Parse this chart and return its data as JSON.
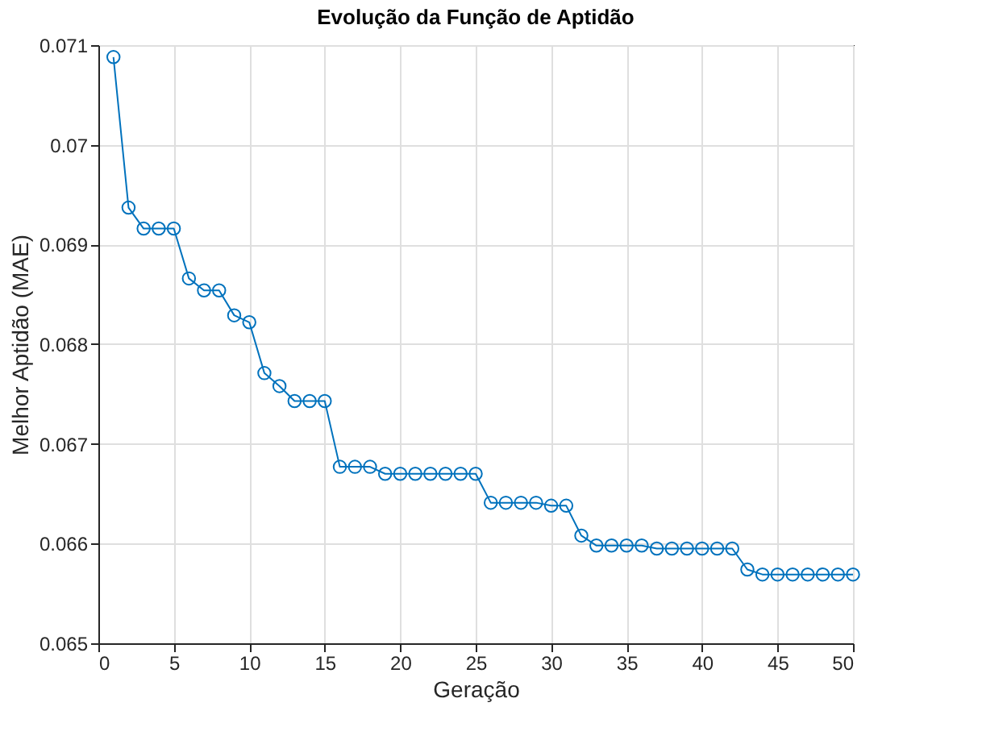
{
  "chart_data": {
    "type": "line",
    "title": "Evolução da Função de Aptidão",
    "xlabel": "Geração",
    "ylabel": "Melhor Aptidão (MAE)",
    "x": [
      1,
      2,
      3,
      4,
      5,
      6,
      7,
      8,
      9,
      10,
      11,
      12,
      13,
      14,
      15,
      16,
      17,
      18,
      19,
      20,
      21,
      22,
      23,
      24,
      25,
      26,
      27,
      28,
      29,
      30,
      31,
      32,
      33,
      34,
      35,
      36,
      37,
      38,
      39,
      40,
      41,
      42,
      43,
      44,
      45,
      46,
      47,
      48,
      49,
      50
    ],
    "series": [
      {
        "color": "#0072bd",
        "values": [
          0.07088,
          0.06937,
          0.06916,
          0.06916,
          0.06916,
          0.06866,
          0.06854,
          0.06854,
          0.06829,
          0.06822,
          0.06771,
          0.06758,
          0.06743,
          0.06743,
          0.06743,
          0.06677,
          0.06677,
          0.06677,
          0.0667,
          0.0667,
          0.0667,
          0.0667,
          0.0667,
          0.0667,
          0.0667,
          0.06641,
          0.06641,
          0.06641,
          0.06641,
          0.06638,
          0.06638,
          0.06608,
          0.06598,
          0.06598,
          0.06598,
          0.06598,
          0.06595,
          0.06595,
          0.06595,
          0.06595,
          0.06595,
          0.06595,
          0.06574,
          0.06569,
          0.06569,
          0.06569,
          0.06569,
          0.06569,
          0.06569,
          0.06569
        ]
      }
    ],
    "xlim": [
      0,
      50
    ],
    "xticks": [
      0,
      5,
      10,
      15,
      20,
      25,
      30,
      35,
      40,
      45,
      50
    ],
    "ylim": [
      0.065,
      0.071
    ],
    "yticks": [
      0.065,
      0.066,
      0.067,
      0.068,
      0.069,
      0.07,
      0.071
    ],
    "grid": true,
    "marker": "circle",
    "line_style": "solid"
  }
}
